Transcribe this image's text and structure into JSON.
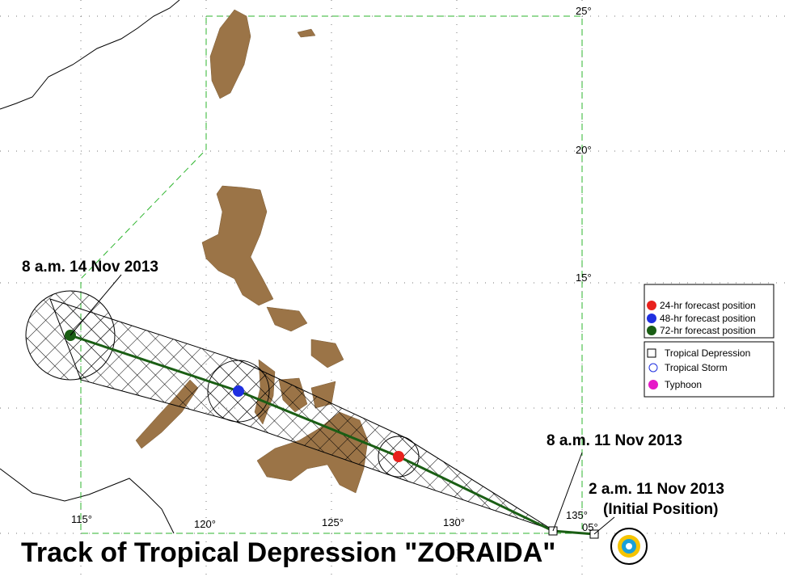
{
  "map": {
    "title": "Track of  Tropical Depression \"ZORAIDA\"",
    "lat_labels": [
      "25°",
      "20°",
      "15°",
      "05°"
    ],
    "lon_labels": [
      "115°",
      "120°",
      "125°",
      "130°",
      "135°"
    ],
    "annotations": [
      "8 a.m. 14 Nov 2013",
      "8 a.m. 11 Nov 2013",
      "2 a.m. 11 Nov 2013",
      "(Initial Position)"
    ],
    "legend": {
      "forecast": [
        "24-hr forecast position",
        "48-hr forecast position",
        "72-hr forecast position"
      ],
      "category": [
        "Tropical Depression",
        "Tropical Storm",
        "Typhoon"
      ]
    }
  }
}
